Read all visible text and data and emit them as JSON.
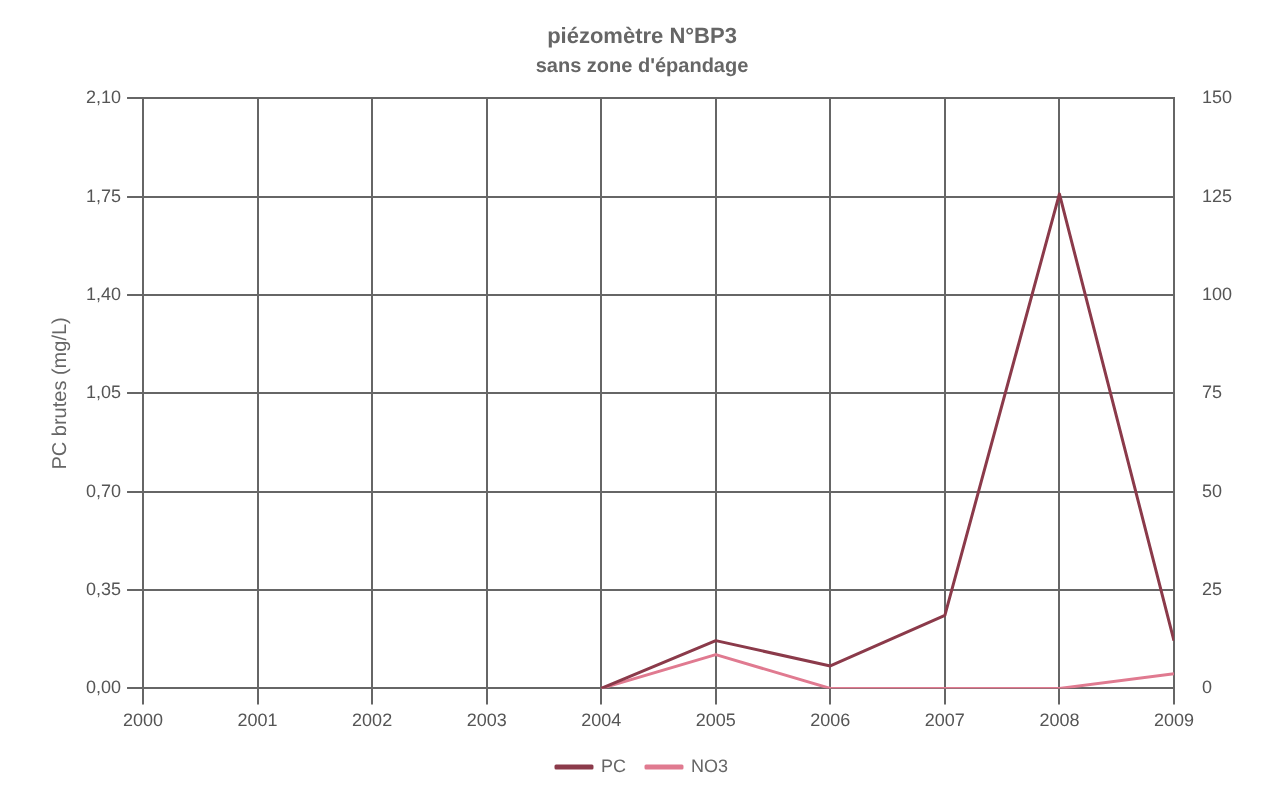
{
  "chart_data": {
    "type": "line",
    "title": "piézomètre N°BP3",
    "subtitle": "sans zone d'épandage",
    "ylabel": "PC brutes (mg/L)",
    "x": [
      2004,
      2005,
      2006,
      2007,
      2008,
      2009
    ],
    "series": [
      {
        "name": "PC",
        "color": "#8b3a4a",
        "values": [
          0,
          0.17,
          0.08,
          0.26,
          1.76,
          0.17
        ]
      },
      {
        "name": "NO3",
        "color": "#e07a90",
        "axis": "y2",
        "values": [
          0,
          8.6,
          0,
          0,
          0,
          3.7
        ]
      }
    ],
    "xlim": [
      2000,
      2009
    ],
    "xticks": [
      2000,
      2001,
      2002,
      2003,
      2004,
      2005,
      2006,
      2007,
      2008,
      2009
    ],
    "ylim": [
      0,
      2.1
    ],
    "yticks": [
      {
        "value": 0,
        "label": "0,00"
      },
      {
        "value": 0.35,
        "label": "0,35"
      },
      {
        "value": 0.7,
        "label": "0,70"
      },
      {
        "value": 1.05,
        "label": "1,05"
      },
      {
        "value": 1.4,
        "label": "1,40"
      },
      {
        "value": 1.75,
        "label": "1,75"
      },
      {
        "value": 2.1,
        "label": "2,10"
      }
    ],
    "y2lim": [
      0,
      150
    ],
    "y2ticks": [
      0,
      25,
      50,
      75,
      100,
      125,
      150
    ],
    "grid": true,
    "legend": "bottom",
    "marker": "none",
    "line_style": "solid"
  }
}
